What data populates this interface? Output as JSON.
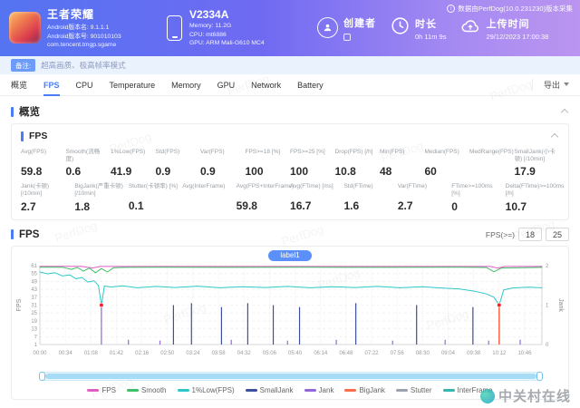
{
  "header": {
    "app": {
      "title": "王者荣耀",
      "lines": [
        "Android版本名: 9.1.1.1",
        "Android版本号: 901010103",
        "com.tencent.tmgp.sgame"
      ]
    },
    "device": {
      "model": "V2334A",
      "memory": "Memory: 11.2G",
      "cpu": "CPU: mt6886",
      "gpu": "GPU: ARM Mali-G610 MC4"
    },
    "creator": {
      "label": "创建者"
    },
    "duration": {
      "label": "时长",
      "value": "0h 11m 9s"
    },
    "upload": {
      "label": "上传时间",
      "value": "29/12/2023 17:00:38"
    },
    "version_note": "数据由PerfDog(10.0.231230)版本采集"
  },
  "note": {
    "badge": "备注:",
    "text": "超高画质、极高帧率模式"
  },
  "tabs": {
    "items": [
      "概览",
      "FPS",
      "CPU",
      "Temperature",
      "Memory",
      "GPU",
      "Network",
      "Battery"
    ],
    "active_index": 1,
    "export_label": "导出"
  },
  "overview": {
    "title": "概览"
  },
  "fps_panel": {
    "title": "FPS",
    "metrics_row1": [
      {
        "label": "Avg(FPS)",
        "value": "59.8"
      },
      {
        "label": "Smooth(流畅度)",
        "value": "0.6"
      },
      {
        "label": "1%Low(FPS)",
        "value": "41.9"
      },
      {
        "label": "Std(FPS)",
        "value": "0.9"
      },
      {
        "label": "Var(FPS)",
        "value": "0.9"
      },
      {
        "label": "FPS>=18 [%]",
        "value": "100"
      },
      {
        "label": "FPS>=25 [%]",
        "value": "100"
      },
      {
        "label": "Drop(FPS) [/h]",
        "value": "10.8"
      },
      {
        "label": "Min(FPS)",
        "value": "48"
      },
      {
        "label": "Median(FPS)",
        "value": "60"
      },
      {
        "label": "MedRange(FPS)",
        "value": ""
      },
      {
        "label": "SmallJank(小卡顿) [/10min]",
        "value": "17.9"
      }
    ],
    "metrics_row2": [
      {
        "label": "Jank(卡顿) [/10min]",
        "value": "2.7"
      },
      {
        "label": "BigJank(严重卡顿) [/10min]",
        "value": "1.8"
      },
      {
        "label": "Stutter(卡顿率) [%]",
        "value": "0.1"
      },
      {
        "label": "Avg(InterFrame)",
        "value": ""
      },
      {
        "label": "Avg(FPS+InterFrame)",
        "value": "59.8"
      },
      {
        "label": "Avg(FTime) [ms]",
        "value": "16.7"
      },
      {
        "label": "Std(FTime)",
        "value": "1.6"
      },
      {
        "label": "Var(FTime)",
        "value": "2.7"
      },
      {
        "label": "FTime>=100ms [%]",
        "value": "0"
      },
      {
        "label": "Delta(FTime)>=100ms [/h]",
        "value": "10.7"
      }
    ]
  },
  "fps_chart": {
    "title": "FPS",
    "threshold_label": "FPS(>=)",
    "threshold_values": [
      "18",
      "25"
    ],
    "region_label": "label1"
  },
  "chart_data": {
    "type": "line",
    "title": "FPS over time with jank events",
    "duration_s": 669,
    "tick_interval_s": 34,
    "x_ticks": [
      "00:00",
      "00:34",
      "01:08",
      "01:42",
      "02:16",
      "02:50",
      "03:24",
      "03:58",
      "04:32",
      "05:06",
      "05:40",
      "06:14",
      "06:48",
      "07:22",
      "07:56",
      "08:30",
      "09:04",
      "09:38",
      "10:12",
      "10:46"
    ],
    "y_left": {
      "label": "FPS",
      "min": 1,
      "max": 61,
      "ticks": [
        61,
        55,
        49,
        43,
        37,
        31,
        25,
        19,
        13,
        7,
        1
      ]
    },
    "y_right": {
      "label": "Jank",
      "min": 0,
      "max": 2,
      "ticks": [
        2,
        1,
        0
      ]
    },
    "series": [
      {
        "name": "FPS",
        "color": "#e25fc3",
        "points": [
          [
            0,
            60.5
          ],
          [
            55,
            60.5
          ],
          [
            70,
            59.2
          ],
          [
            80,
            60.4
          ],
          [
            200,
            60.4
          ],
          [
            400,
            60.4
          ],
          [
            600,
            60.4
          ],
          [
            610,
            59.2
          ],
          [
            620,
            60.4
          ],
          [
            669,
            60.4
          ]
        ]
      },
      {
        "name": "Smooth",
        "color": "#3fbf67",
        "points": [
          [
            0,
            59.8
          ],
          [
            30,
            59.8
          ],
          [
            42,
            58.2
          ],
          [
            50,
            59.6
          ],
          [
            58,
            56.8
          ],
          [
            66,
            59.2
          ],
          [
            74,
            55.6
          ],
          [
            82,
            58.8
          ],
          [
            90,
            56.2
          ],
          [
            98,
            59.4
          ],
          [
            115,
            59.7
          ],
          [
            160,
            59.8
          ],
          [
            250,
            59.7
          ],
          [
            350,
            59.8
          ],
          [
            450,
            59.7
          ],
          [
            550,
            59.8
          ],
          [
            595,
            59.6
          ],
          [
            605,
            56.4
          ],
          [
            615,
            59.2
          ],
          [
            669,
            59.7
          ]
        ]
      },
      {
        "name": "1%Low(FPS)",
        "color": "#2ec7c9",
        "points": [
          [
            0,
            56.2
          ],
          [
            10,
            54.8
          ],
          [
            20,
            55.6
          ],
          [
            30,
            53.2
          ],
          [
            40,
            54.0
          ],
          [
            48,
            51.0
          ],
          [
            56,
            52.0
          ],
          [
            64,
            48.5
          ],
          [
            72,
            49.5
          ],
          [
            78,
            46.0
          ],
          [
            82,
            31.0
          ],
          [
            86,
            45.5
          ],
          [
            95,
            44.8
          ],
          [
            110,
            45.6
          ],
          [
            130,
            44.2
          ],
          [
            155,
            45.2
          ],
          [
            180,
            44.4
          ],
          [
            210,
            45.4
          ],
          [
            240,
            44.2
          ],
          [
            270,
            45.0
          ],
          [
            300,
            44.4
          ],
          [
            330,
            45.2
          ],
          [
            360,
            44.2
          ],
          [
            390,
            45.0
          ],
          [
            420,
            44.4
          ],
          [
            450,
            45.2
          ],
          [
            480,
            44.2
          ],
          [
            510,
            45.0
          ],
          [
            535,
            44.0
          ],
          [
            560,
            43.2
          ],
          [
            580,
            41.5
          ],
          [
            595,
            39.5
          ],
          [
            605,
            37.0
          ],
          [
            612,
            31.0
          ],
          [
            618,
            42.5
          ],
          [
            630,
            44.0
          ],
          [
            650,
            44.6
          ],
          [
            669,
            44.2
          ]
        ]
      }
    ],
    "event_series": [
      {
        "name": "SmallJank",
        "color": "#3d4f9e",
        "width": 1.2,
        "events": [
          [
            178,
            1.0
          ],
          [
            202,
            1.05
          ],
          [
            242,
            0.95
          ],
          [
            277,
            1.05
          ],
          [
            311,
            1.0
          ],
          [
            346,
            0.95
          ],
          [
            421,
            1.05
          ],
          [
            502,
            1.0
          ],
          [
            577,
            0.95
          ]
        ]
      },
      {
        "name": "Jank",
        "color": "#9068d9",
        "width": 1.2,
        "events": [
          [
            82,
            0.95
          ],
          [
            118,
            0.12
          ],
          [
            160,
            0.1
          ],
          [
            255,
            0.12
          ],
          [
            330,
            0.1
          ],
          [
            395,
            0.12
          ],
          [
            470,
            0.1
          ],
          [
            540,
            0.12
          ],
          [
            598,
            0.1
          ],
          [
            640,
            0.12
          ]
        ]
      },
      {
        "name": "BigJank",
        "color": "#fa6e4f",
        "width": 1.6,
        "events": [
          [
            612,
            1.05
          ]
        ]
      }
    ],
    "markers": [
      {
        "t": 82,
        "fps": 31
      },
      {
        "t": 612,
        "fps": 31
      }
    ],
    "legend": [
      {
        "label": "FPS",
        "color": "#e25fc3"
      },
      {
        "label": "Smooth",
        "color": "#3fbf67"
      },
      {
        "label": "1%Low(FPS)",
        "color": "#2ec7c9"
      },
      {
        "label": "SmallJank",
        "color": "#3d4f9e"
      },
      {
        "label": "Jank",
        "color": "#9068d9"
      },
      {
        "label": "BigJank",
        "color": "#fa6e4f"
      },
      {
        "label": "Stutter",
        "color": "#9aa2b1"
      },
      {
        "label": "InterFrame",
        "color": "#3ab5ae"
      }
    ]
  },
  "watermark": {
    "text": "PerfDog"
  },
  "site_watermark": {
    "text": "中关村在线"
  }
}
